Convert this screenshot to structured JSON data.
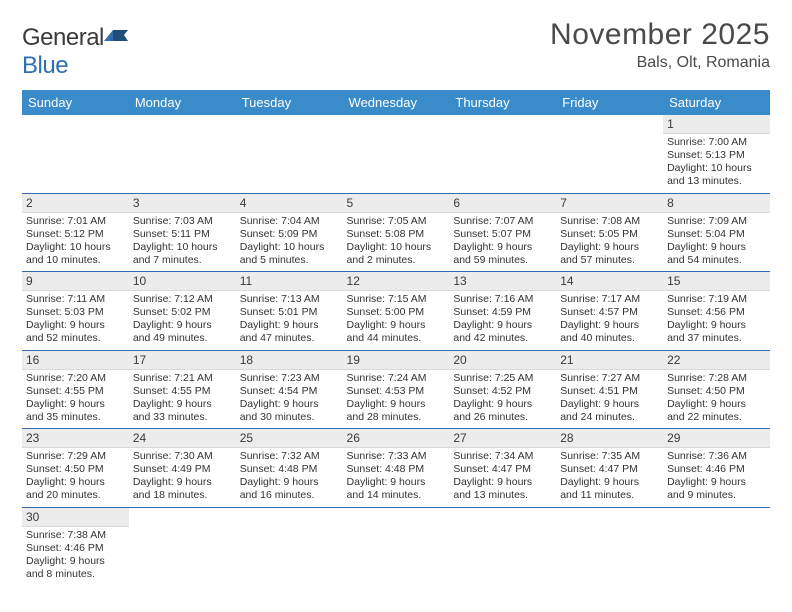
{
  "logo": {
    "text_general": "General",
    "text_blue": "Blue"
  },
  "title": "November 2025",
  "subtitle": "Bals, Olt, Romania",
  "columns": [
    "Sunday",
    "Monday",
    "Tuesday",
    "Wednesday",
    "Thursday",
    "Friday",
    "Saturday"
  ],
  "colors": {
    "header_bg": "#3a8bc9",
    "rule": "#2f6fb0",
    "daynum_bg": "#ececec"
  },
  "weeks": [
    [
      {
        "n": "",
        "sr": "",
        "ss": "",
        "dl": ""
      },
      {
        "n": "",
        "sr": "",
        "ss": "",
        "dl": ""
      },
      {
        "n": "",
        "sr": "",
        "ss": "",
        "dl": ""
      },
      {
        "n": "",
        "sr": "",
        "ss": "",
        "dl": ""
      },
      {
        "n": "",
        "sr": "",
        "ss": "",
        "dl": ""
      },
      {
        "n": "",
        "sr": "",
        "ss": "",
        "dl": ""
      },
      {
        "n": "1",
        "sr": "Sunrise: 7:00 AM",
        "ss": "Sunset: 5:13 PM",
        "dl": "Daylight: 10 hours and 13 minutes."
      }
    ],
    [
      {
        "n": "2",
        "sr": "Sunrise: 7:01 AM",
        "ss": "Sunset: 5:12 PM",
        "dl": "Daylight: 10 hours and 10 minutes."
      },
      {
        "n": "3",
        "sr": "Sunrise: 7:03 AM",
        "ss": "Sunset: 5:11 PM",
        "dl": "Daylight: 10 hours and 7 minutes."
      },
      {
        "n": "4",
        "sr": "Sunrise: 7:04 AM",
        "ss": "Sunset: 5:09 PM",
        "dl": "Daylight: 10 hours and 5 minutes."
      },
      {
        "n": "5",
        "sr": "Sunrise: 7:05 AM",
        "ss": "Sunset: 5:08 PM",
        "dl": "Daylight: 10 hours and 2 minutes."
      },
      {
        "n": "6",
        "sr": "Sunrise: 7:07 AM",
        "ss": "Sunset: 5:07 PM",
        "dl": "Daylight: 9 hours and 59 minutes."
      },
      {
        "n": "7",
        "sr": "Sunrise: 7:08 AM",
        "ss": "Sunset: 5:05 PM",
        "dl": "Daylight: 9 hours and 57 minutes."
      },
      {
        "n": "8",
        "sr": "Sunrise: 7:09 AM",
        "ss": "Sunset: 5:04 PM",
        "dl": "Daylight: 9 hours and 54 minutes."
      }
    ],
    [
      {
        "n": "9",
        "sr": "Sunrise: 7:11 AM",
        "ss": "Sunset: 5:03 PM",
        "dl": "Daylight: 9 hours and 52 minutes."
      },
      {
        "n": "10",
        "sr": "Sunrise: 7:12 AM",
        "ss": "Sunset: 5:02 PM",
        "dl": "Daylight: 9 hours and 49 minutes."
      },
      {
        "n": "11",
        "sr": "Sunrise: 7:13 AM",
        "ss": "Sunset: 5:01 PM",
        "dl": "Daylight: 9 hours and 47 minutes."
      },
      {
        "n": "12",
        "sr": "Sunrise: 7:15 AM",
        "ss": "Sunset: 5:00 PM",
        "dl": "Daylight: 9 hours and 44 minutes."
      },
      {
        "n": "13",
        "sr": "Sunrise: 7:16 AM",
        "ss": "Sunset: 4:59 PM",
        "dl": "Daylight: 9 hours and 42 minutes."
      },
      {
        "n": "14",
        "sr": "Sunrise: 7:17 AM",
        "ss": "Sunset: 4:57 PM",
        "dl": "Daylight: 9 hours and 40 minutes."
      },
      {
        "n": "15",
        "sr": "Sunrise: 7:19 AM",
        "ss": "Sunset: 4:56 PM",
        "dl": "Daylight: 9 hours and 37 minutes."
      }
    ],
    [
      {
        "n": "16",
        "sr": "Sunrise: 7:20 AM",
        "ss": "Sunset: 4:55 PM",
        "dl": "Daylight: 9 hours and 35 minutes."
      },
      {
        "n": "17",
        "sr": "Sunrise: 7:21 AM",
        "ss": "Sunset: 4:55 PM",
        "dl": "Daylight: 9 hours and 33 minutes."
      },
      {
        "n": "18",
        "sr": "Sunrise: 7:23 AM",
        "ss": "Sunset: 4:54 PM",
        "dl": "Daylight: 9 hours and 30 minutes."
      },
      {
        "n": "19",
        "sr": "Sunrise: 7:24 AM",
        "ss": "Sunset: 4:53 PM",
        "dl": "Daylight: 9 hours and 28 minutes."
      },
      {
        "n": "20",
        "sr": "Sunrise: 7:25 AM",
        "ss": "Sunset: 4:52 PM",
        "dl": "Daylight: 9 hours and 26 minutes."
      },
      {
        "n": "21",
        "sr": "Sunrise: 7:27 AM",
        "ss": "Sunset: 4:51 PM",
        "dl": "Daylight: 9 hours and 24 minutes."
      },
      {
        "n": "22",
        "sr": "Sunrise: 7:28 AM",
        "ss": "Sunset: 4:50 PM",
        "dl": "Daylight: 9 hours and 22 minutes."
      }
    ],
    [
      {
        "n": "23",
        "sr": "Sunrise: 7:29 AM",
        "ss": "Sunset: 4:50 PM",
        "dl": "Daylight: 9 hours and 20 minutes."
      },
      {
        "n": "24",
        "sr": "Sunrise: 7:30 AM",
        "ss": "Sunset: 4:49 PM",
        "dl": "Daylight: 9 hours and 18 minutes."
      },
      {
        "n": "25",
        "sr": "Sunrise: 7:32 AM",
        "ss": "Sunset: 4:48 PM",
        "dl": "Daylight: 9 hours and 16 minutes."
      },
      {
        "n": "26",
        "sr": "Sunrise: 7:33 AM",
        "ss": "Sunset: 4:48 PM",
        "dl": "Daylight: 9 hours and 14 minutes."
      },
      {
        "n": "27",
        "sr": "Sunrise: 7:34 AM",
        "ss": "Sunset: 4:47 PM",
        "dl": "Daylight: 9 hours and 13 minutes."
      },
      {
        "n": "28",
        "sr": "Sunrise: 7:35 AM",
        "ss": "Sunset: 4:47 PM",
        "dl": "Daylight: 9 hours and 11 minutes."
      },
      {
        "n": "29",
        "sr": "Sunrise: 7:36 AM",
        "ss": "Sunset: 4:46 PM",
        "dl": "Daylight: 9 hours and 9 minutes."
      }
    ],
    [
      {
        "n": "30",
        "sr": "Sunrise: 7:38 AM",
        "ss": "Sunset: 4:46 PM",
        "dl": "Daylight: 9 hours and 8 minutes."
      },
      {
        "n": "",
        "sr": "",
        "ss": "",
        "dl": ""
      },
      {
        "n": "",
        "sr": "",
        "ss": "",
        "dl": ""
      },
      {
        "n": "",
        "sr": "",
        "ss": "",
        "dl": ""
      },
      {
        "n": "",
        "sr": "",
        "ss": "",
        "dl": ""
      },
      {
        "n": "",
        "sr": "",
        "ss": "",
        "dl": ""
      },
      {
        "n": "",
        "sr": "",
        "ss": "",
        "dl": ""
      }
    ]
  ]
}
